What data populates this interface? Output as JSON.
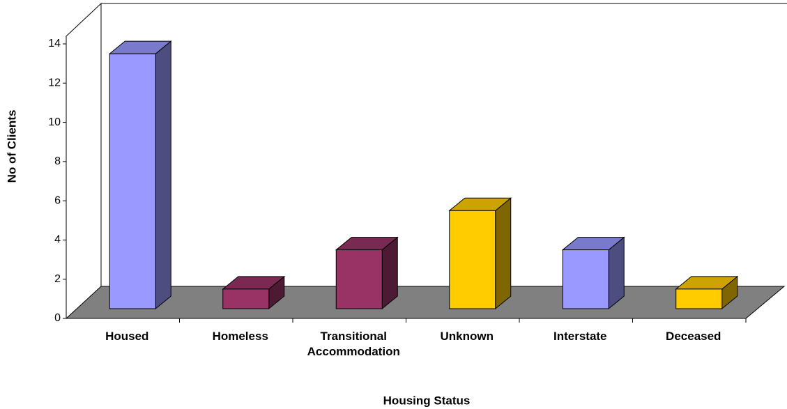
{
  "chart_data": {
    "type": "bar3d",
    "x_label": "Housing Status",
    "y_label": "No of Clients",
    "categories": [
      "Housed",
      "Homeless",
      "Transitional Accommodation",
      "Unknown",
      "Interstate",
      "Deceased"
    ],
    "values": [
      13,
      1,
      3,
      5,
      3,
      1
    ],
    "colors": [
      "#9999ff",
      "#993366",
      "#993366",
      "#ffcc00",
      "#9999ff",
      "#ffcc00"
    ],
    "ylim": [
      0,
      14
    ],
    "yticks": [
      0,
      2,
      4,
      6,
      8,
      10,
      12,
      14
    ]
  }
}
